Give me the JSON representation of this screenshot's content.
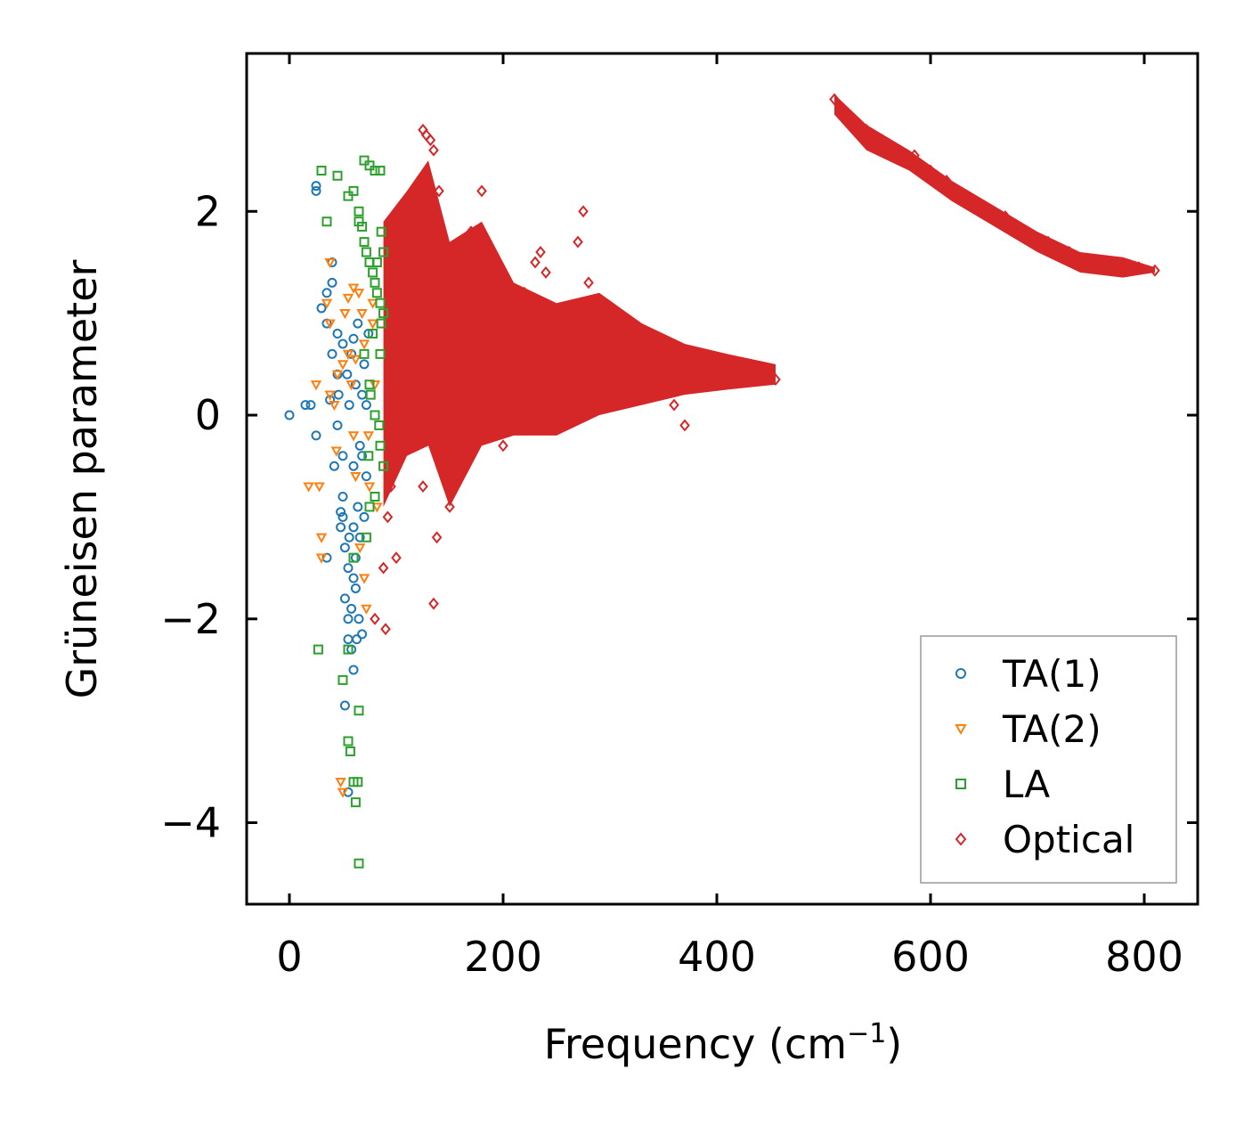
{
  "chart_data": {
    "type": "scatter",
    "title": "",
    "xlabel": "Frequency (cm",
    "xlabel_sup": "−1",
    "xlabel_tail": ")",
    "ylabel": "Grüneisen parameter",
    "xlim": [
      -40,
      850
    ],
    "ylim": [
      -4.8,
      3.55
    ],
    "xticks": [
      0,
      200,
      400,
      600,
      800
    ],
    "xtick_labels": [
      "0",
      "200",
      "400",
      "600",
      "800"
    ],
    "yticks": [
      -4,
      -2,
      0,
      2
    ],
    "ytick_labels": [
      "−4",
      "−2",
      "0",
      "2"
    ],
    "grid": false,
    "legend_position": "bottom-right",
    "colors": {
      "TA(1)": "#1f77b4",
      "TA(2)": "#ff7f0e",
      "LA": "#2ca02c",
      "Optical": "#d62728"
    },
    "series": [
      {
        "name": "TA(1)",
        "marker": "circle",
        "points": [
          [
            0,
            0
          ],
          [
            15,
            0.1
          ],
          [
            20,
            0.1
          ],
          [
            25,
            -0.2
          ],
          [
            25,
            2.2
          ],
          [
            25,
            2.25
          ],
          [
            30,
            1.05
          ],
          [
            35,
            1.2
          ],
          [
            35,
            0.9
          ],
          [
            35,
            -1.4
          ],
          [
            40,
            1.5
          ],
          [
            40,
            1.3
          ],
          [
            45,
            0.8
          ],
          [
            45,
            0.4
          ],
          [
            45,
            -0.1
          ],
          [
            50,
            -0.4
          ],
          [
            50,
            -0.8
          ],
          [
            50,
            -1.0
          ],
          [
            48,
            -1.1
          ],
          [
            52,
            -1.3
          ],
          [
            55,
            -1.5
          ],
          [
            52,
            -1.8
          ],
          [
            55,
            -2.0
          ],
          [
            55,
            -2.2
          ],
          [
            58,
            -2.3
          ],
          [
            60,
            -2.5
          ],
          [
            52,
            -2.85
          ],
          [
            55,
            -3.7
          ],
          [
            60,
            -1.1
          ],
          [
            62,
            -1.7
          ],
          [
            65,
            -2.0
          ],
          [
            68,
            -2.15
          ],
          [
            63,
            -2.2
          ],
          [
            58,
            0.6
          ],
          [
            62,
            0.3
          ],
          [
            64,
            0.9
          ],
          [
            56,
            0.1
          ],
          [
            60,
            -0.5
          ],
          [
            66,
            -0.3
          ],
          [
            70,
            0.5
          ],
          [
            72,
            -0.6
          ],
          [
            68,
            0.2
          ],
          [
            74,
            0.8
          ],
          [
            50,
            0.7
          ],
          [
            46,
            0.2
          ],
          [
            54,
            0.4
          ],
          [
            40,
            0.6
          ],
          [
            38,
            0.15
          ],
          [
            42,
            -0.5
          ],
          [
            48,
            -0.95
          ],
          [
            62,
            -1.4
          ],
          [
            66,
            -1.2
          ],
          [
            70,
            -1.0
          ],
          [
            58,
            -1.9
          ],
          [
            60,
            -1.6
          ],
          [
            56,
            -1.2
          ],
          [
            64,
            -0.9
          ],
          [
            68,
            -0.4
          ],
          [
            72,
            0.1
          ],
          [
            60,
            0.75
          ]
        ]
      },
      {
        "name": "TA(2)",
        "marker": "triangle-down",
        "points": [
          [
            18,
            -0.7
          ],
          [
            25,
            0.3
          ],
          [
            28,
            -0.7
          ],
          [
            30,
            -1.2
          ],
          [
            30,
            -1.4
          ],
          [
            35,
            1.1
          ],
          [
            38,
            0.9
          ],
          [
            38,
            0.2
          ],
          [
            42,
            0.1
          ],
          [
            45,
            0.4
          ],
          [
            48,
            -3.6
          ],
          [
            50,
            -3.7
          ],
          [
            50,
            0.5
          ],
          [
            52,
            1.0
          ],
          [
            55,
            1.15
          ],
          [
            55,
            0.6
          ],
          [
            58,
            0.3
          ],
          [
            60,
            -0.2
          ],
          [
            62,
            -0.6
          ],
          [
            65,
            1.2
          ],
          [
            68,
            1.0
          ],
          [
            70,
            0.7
          ],
          [
            70,
            -1.6
          ],
          [
            72,
            -1.9
          ],
          [
            75,
            -0.7
          ],
          [
            78,
            0.9
          ],
          [
            80,
            0.3
          ],
          [
            82,
            -0.9
          ],
          [
            66,
            -1.3
          ],
          [
            60,
            1.25
          ],
          [
            38,
            1.5
          ],
          [
            44,
            -0.35
          ],
          [
            62,
            0.55
          ],
          [
            74,
            -0.2
          ],
          [
            78,
            1.1
          ]
        ]
      },
      {
        "name": "LA",
        "marker": "square",
        "points": [
          [
            30,
            2.4
          ],
          [
            35,
            1.9
          ],
          [
            45,
            2.35
          ],
          [
            55,
            2.15
          ],
          [
            60,
            2.2
          ],
          [
            65,
            2.0
          ],
          [
            70,
            2.5
          ],
          [
            75,
            2.45
          ],
          [
            80,
            2.4
          ],
          [
            85,
            2.4
          ],
          [
            65,
            1.9
          ],
          [
            68,
            1.85
          ],
          [
            70,
            1.7
          ],
          [
            72,
            1.6
          ],
          [
            75,
            1.5
          ],
          [
            78,
            1.4
          ],
          [
            80,
            1.3
          ],
          [
            82,
            1.2
          ],
          [
            85,
            1.1
          ],
          [
            88,
            1.0
          ],
          [
            70,
            0.6
          ],
          [
            75,
            0.3
          ],
          [
            80,
            0.0
          ],
          [
            85,
            -0.3
          ],
          [
            88,
            -0.5
          ],
          [
            75,
            -0.9
          ],
          [
            80,
            -0.8
          ],
          [
            72,
            -1.2
          ],
          [
            60,
            -1.4
          ],
          [
            55,
            -2.3
          ],
          [
            27,
            -2.3
          ],
          [
            50,
            -2.6
          ],
          [
            55,
            -3.2
          ],
          [
            57,
            -3.3
          ],
          [
            60,
            -3.6
          ],
          [
            62,
            -3.8
          ],
          [
            64,
            -3.6
          ],
          [
            65,
            -2.9
          ],
          [
            65,
            -4.4
          ],
          [
            85,
            0.6
          ],
          [
            82,
            1.5
          ],
          [
            78,
            0.8
          ],
          [
            84,
            -0.1
          ],
          [
            86,
            1.8
          ],
          [
            88,
            1.6
          ],
          [
            76,
            0.2
          ],
          [
            74,
            -0.4
          ],
          [
            86,
            0.9
          ]
        ]
      },
      {
        "name": "Optical",
        "marker": "diamond",
        "points": [
          [
            88,
            -1.5
          ],
          [
            92,
            -1.0
          ],
          [
            95,
            -0.7
          ],
          [
            100,
            -0.3
          ],
          [
            105,
            0.1
          ],
          [
            110,
            0.5
          ],
          [
            115,
            0.3
          ],
          [
            120,
            1.2
          ],
          [
            125,
            2.8
          ],
          [
            128,
            2.75
          ],
          [
            132,
            2.7
          ],
          [
            135,
            2.6
          ],
          [
            140,
            2.2
          ],
          [
            125,
            -0.7
          ],
          [
            138,
            -1.2
          ],
          [
            135,
            -1.85
          ],
          [
            80,
            -2.0
          ],
          [
            90,
            -2.1
          ],
          [
            100,
            -1.4
          ],
          [
            150,
            -0.9
          ],
          [
            155,
            -0.4
          ],
          [
            160,
            0.4
          ],
          [
            165,
            1.2
          ],
          [
            170,
            1.8
          ],
          [
            175,
            1.5
          ],
          [
            180,
            2.2
          ],
          [
            185,
            1.4
          ],
          [
            190,
            0.8
          ],
          [
            195,
            0.2
          ],
          [
            200,
            -0.3
          ],
          [
            210,
            0.5
          ],
          [
            220,
            1.2
          ],
          [
            230,
            1.5
          ],
          [
            235,
            1.6
          ],
          [
            240,
            1.4
          ],
          [
            250,
            0.8
          ],
          [
            260,
            0.6
          ],
          [
            270,
            1.7
          ],
          [
            275,
            2.0
          ],
          [
            280,
            1.3
          ],
          [
            290,
            0.9
          ],
          [
            300,
            0.7
          ],
          [
            310,
            0.4
          ],
          [
            320,
            0.3
          ],
          [
            330,
            0.5
          ],
          [
            340,
            0.3
          ],
          [
            350,
            0.4
          ],
          [
            360,
            0.1
          ],
          [
            370,
            -0.1
          ],
          [
            380,
            0.3
          ],
          [
            400,
            0.4
          ],
          [
            420,
            0.45
          ],
          [
            440,
            0.45
          ],
          [
            450,
            0.4
          ],
          [
            455,
            0.35
          ],
          [
            510,
            3.1
          ],
          [
            515,
            3.0
          ],
          [
            525,
            2.9
          ],
          [
            540,
            2.8
          ],
          [
            555,
            2.7
          ],
          [
            570,
            2.6
          ],
          [
            585,
            2.55
          ],
          [
            600,
            2.4
          ],
          [
            615,
            2.3
          ],
          [
            630,
            2.15
          ],
          [
            650,
            2.05
          ],
          [
            670,
            1.95
          ],
          [
            690,
            1.8
          ],
          [
            710,
            1.7
          ],
          [
            730,
            1.6
          ],
          [
            750,
            1.5
          ],
          [
            765,
            1.45
          ],
          [
            780,
            1.45
          ],
          [
            795,
            1.45
          ],
          [
            810,
            1.42
          ]
        ],
        "filled_bands": [
          {
            "x": [
              88,
              110,
              130,
              150,
              180,
              210,
              250,
              290,
              330,
              370,
              410,
              455
            ],
            "y_low": [
              -0.9,
              -0.4,
              -0.3,
              -0.9,
              -0.3,
              -0.2,
              -0.2,
              0.0,
              0.1,
              0.2,
              0.25,
              0.3
            ],
            "y_high": [
              1.9,
              2.2,
              2.5,
              1.7,
              1.9,
              1.3,
              1.1,
              1.2,
              0.9,
              0.7,
              0.6,
              0.5
            ]
          },
          {
            "x": [
              510,
              540,
              580,
              620,
              660,
              700,
              740,
              780,
              810
            ],
            "y_low": [
              2.95,
              2.6,
              2.4,
              2.1,
              1.85,
              1.6,
              1.4,
              1.35,
              1.4
            ],
            "y_high": [
              3.15,
              2.85,
              2.6,
              2.3,
              2.05,
              1.8,
              1.6,
              1.55,
              1.45
            ]
          }
        ]
      }
    ]
  }
}
